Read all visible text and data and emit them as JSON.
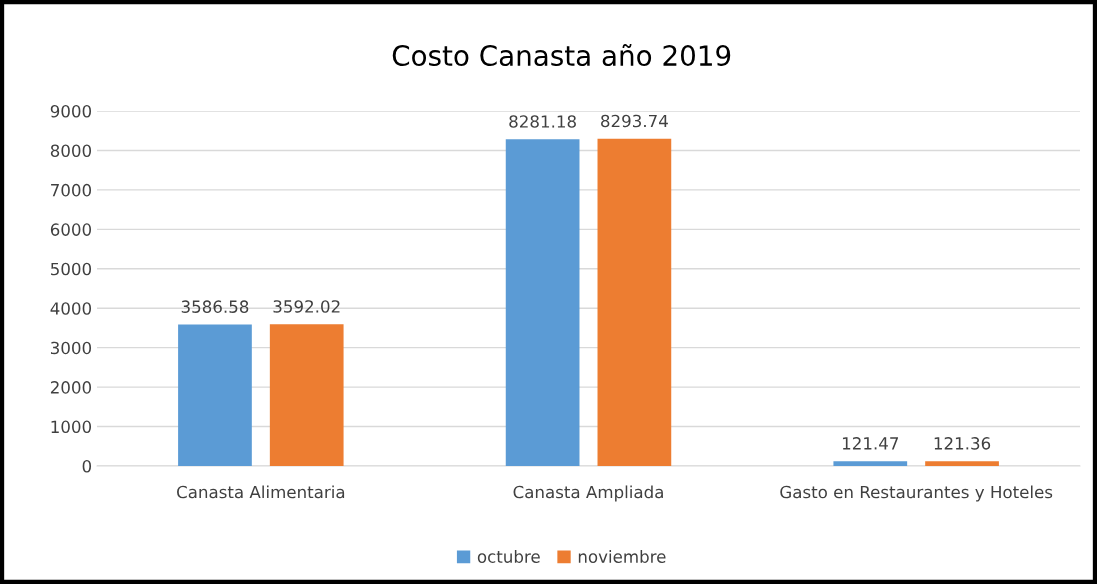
{
  "chart_data": {
    "type": "bar",
    "title": "Costo Canasta año 2019",
    "categories": [
      "Canasta Alimentaria",
      "Canasta Ampliada",
      "Gasto en Restaurantes y Hoteles"
    ],
    "series": [
      {
        "name": "octubre",
        "color": "#5b9bd5",
        "values": [
          3586.58,
          8281.18,
          121.47
        ]
      },
      {
        "name": "noviembre",
        "color": "#ed7d31",
        "values": [
          3592.02,
          8293.74,
          121.36
        ]
      }
    ],
    "ylim": [
      0,
      9000
    ],
    "yticks": [
      0,
      1000,
      2000,
      3000,
      4000,
      5000,
      6000,
      7000,
      8000,
      9000
    ],
    "grid": "y",
    "legend": "bottom",
    "data_labels": true
  }
}
